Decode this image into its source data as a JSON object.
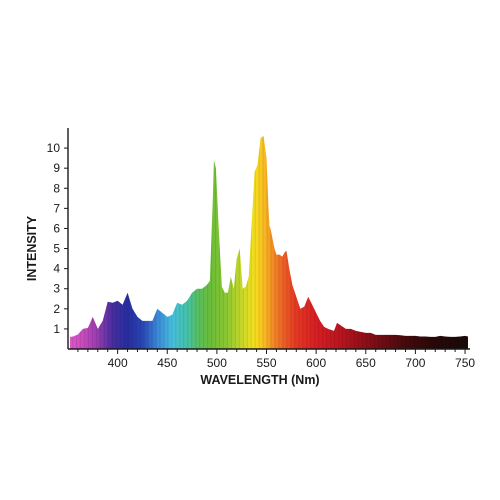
{
  "chart_data": {
    "type": "area",
    "title": "",
    "xlabel": "WAVELENGTH (Nm)",
    "ylabel": "INTENSITY",
    "xlim": [
      350,
      755
    ],
    "ylim": [
      0,
      11
    ],
    "x_ticks": [
      400,
      450,
      500,
      550,
      600,
      650,
      700,
      750
    ],
    "y_ticks": [
      1,
      2,
      3,
      4,
      5,
      6,
      7,
      8,
      9,
      10
    ],
    "grid": false,
    "legend": "none",
    "fill": "visible-spectrum gradient by wavelength",
    "series": [
      {
        "x": [
          352,
          355,
          360,
          365,
          370,
          375,
          380,
          385,
          390,
          395,
          400,
          405,
          410,
          415,
          420,
          425,
          430,
          435,
          440,
          445,
          450,
          455,
          460,
          465,
          470,
          475,
          480,
          485,
          490,
          493,
          496,
          497,
          499,
          502,
          505,
          508,
          511,
          514,
          517,
          520,
          523,
          526,
          529,
          532,
          535,
          538,
          541,
          544,
          547,
          550,
          552,
          553,
          554,
          556,
          558,
          560,
          563,
          566,
          568,
          570,
          573,
          576,
          580,
          584,
          588,
          592,
          596,
          600,
          604,
          608,
          612,
          615,
          618,
          621,
          624,
          627,
          630,
          635,
          640,
          645,
          650,
          655,
          660,
          665,
          670,
          675,
          680,
          685,
          690,
          695,
          700,
          705,
          710,
          715,
          720,
          725,
          730,
          735,
          740,
          745,
          750,
          753
        ],
        "y": [
          0.6,
          0.62,
          0.72,
          1.0,
          1.05,
          1.6,
          1.0,
          1.4,
          2.35,
          2.3,
          2.4,
          2.2,
          2.8,
          2.0,
          1.6,
          1.4,
          1.4,
          1.4,
          2.0,
          1.8,
          1.6,
          1.7,
          2.3,
          2.2,
          2.4,
          2.8,
          3.0,
          3.0,
          3.2,
          3.4,
          7.6,
          9.4,
          9.0,
          5.8,
          3.1,
          2.8,
          2.8,
          3.6,
          3.0,
          4.5,
          5.0,
          3.0,
          3.1,
          3.6,
          6.2,
          8.8,
          9.2,
          10.5,
          10.6,
          9.5,
          7.0,
          6.1,
          6.0,
          5.5,
          5.0,
          4.7,
          4.7,
          4.6,
          4.8,
          4.9,
          4.0,
          3.2,
          2.6,
          2.0,
          2.1,
          2.6,
          2.2,
          1.8,
          1.4,
          1.1,
          1.0,
          0.95,
          0.9,
          1.3,
          1.2,
          1.1,
          1.0,
          1.0,
          0.9,
          0.85,
          0.8,
          0.8,
          0.7,
          0.7,
          0.7,
          0.7,
          0.7,
          0.68,
          0.65,
          0.65,
          0.65,
          0.62,
          0.62,
          0.6,
          0.6,
          0.65,
          0.62,
          0.6,
          0.6,
          0.62,
          0.65,
          0.62
        ]
      }
    ]
  }
}
